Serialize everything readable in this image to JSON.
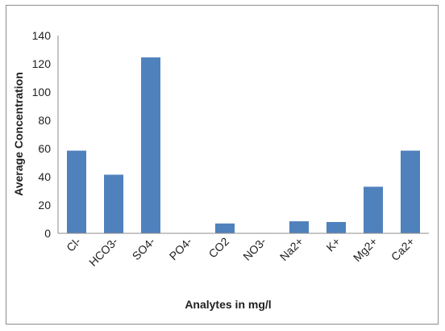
{
  "chart_data": {
    "type": "bar",
    "title": "",
    "xlabel": "Analytes in mg/l",
    "ylabel": "Average Concentration",
    "categories": [
      "Cl-",
      "HCO3-",
      "SO4-",
      "PO4-",
      "CO2",
      "NO3-",
      "Na2+",
      "K+",
      "Mg2+",
      "Ca2+"
    ],
    "values": [
      58.5,
      41.5,
      124.5,
      0,
      7,
      0,
      8.5,
      8,
      33,
      58.5
    ],
    "ylim": [
      0,
      140
    ],
    "yticks": [
      "0",
      "20",
      "40",
      "60",
      "80",
      "100",
      "120",
      "140"
    ],
    "grid": false,
    "legend": "none",
    "bar_color": "#4f81bd"
  }
}
